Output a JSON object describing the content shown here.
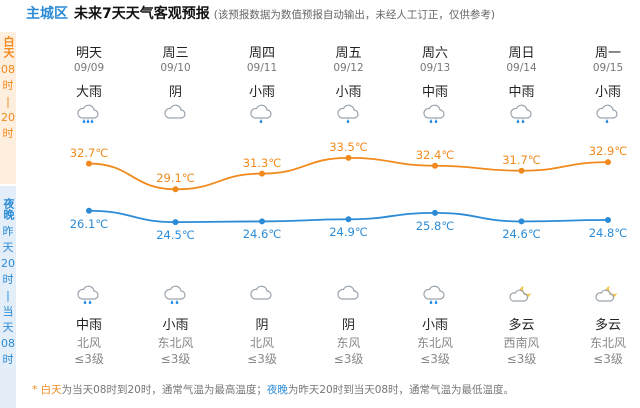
{
  "header": {
    "district": "主城区",
    "title": "未来7天天气客观预报",
    "note": "(该预报数据为数值预报自动输出，未经人工订正，仅供参考)"
  },
  "side": {
    "day_title": "白天",
    "day_range": [
      "08",
      "时",
      "|",
      "20",
      "时"
    ],
    "night_title": "夜晚",
    "night_range": [
      "昨",
      "天",
      "20",
      "时",
      "|",
      "当",
      "天",
      "08",
      "时"
    ]
  },
  "days": [
    {
      "name": "明天",
      "date": "09/09",
      "day_weather": "大雨",
      "day_icon": "heavy-rain-icon",
      "night_icon": "rain-icon",
      "night_weather": "中雨",
      "wind_dir": "北风",
      "wind_level": "≤3级"
    },
    {
      "name": "周三",
      "date": "09/10",
      "day_weather": "阴",
      "day_icon": "overcast-icon",
      "night_icon": "rain-icon",
      "night_weather": "小雨",
      "wind_dir": "东北风",
      "wind_level": "≤3级"
    },
    {
      "name": "周四",
      "date": "09/11",
      "day_weather": "小雨",
      "day_icon": "light-rain-icon",
      "night_icon": "overcast-icon",
      "night_weather": "阴",
      "wind_dir": "北风",
      "wind_level": "≤3级"
    },
    {
      "name": "周五",
      "date": "09/12",
      "day_weather": "小雨",
      "day_icon": "light-rain-icon",
      "night_icon": "overcast-icon",
      "night_weather": "阴",
      "wind_dir": "东风",
      "wind_level": "≤3级"
    },
    {
      "name": "周六",
      "date": "09/13",
      "day_weather": "中雨",
      "day_icon": "rain-icon",
      "night_icon": "rain-icon",
      "night_weather": "小雨",
      "wind_dir": "东北风",
      "wind_level": "≤3级"
    },
    {
      "name": "周日",
      "date": "09/14",
      "day_weather": "中雨",
      "day_icon": "rain-icon",
      "night_icon": "cloudy-night-icon",
      "night_weather": "多云",
      "wind_dir": "西南风",
      "wind_level": "≤3级"
    },
    {
      "name": "周一",
      "date": "09/15",
      "day_weather": "小雨",
      "day_icon": "light-rain-icon",
      "night_icon": "cloudy-night-icon",
      "night_weather": "多云",
      "wind_dir": "东北风",
      "wind_level": "≤3级"
    }
  ],
  "chart_data": {
    "type": "line",
    "categories": [
      "09/09",
      "09/10",
      "09/11",
      "09/12",
      "09/13",
      "09/14",
      "09/15"
    ],
    "series": [
      {
        "values": [
          32.7,
          29.1,
          31.3,
          33.5,
          32.4,
          31.7,
          32.9
        ],
        "color": "#f08a1c"
      },
      {
        "values": [
          26.1,
          24.5,
          24.6,
          24.9,
          25.8,
          24.6,
          24.8
        ],
        "color": "#2b8bd6"
      }
    ],
    "unit": "℃",
    "ylim": [
      22,
      36
    ]
  },
  "footer": {
    "star": "*",
    "day_term": "白天",
    "day_text": "为当天08时到20时，通常气温为最高温度；",
    "night_term": "夜晚",
    "night_text": "为昨天20时到当天08时，通常气温为最低温度。"
  },
  "colors": {
    "day_accent": "#f08a1c",
    "night_accent": "#2b8bd6",
    "day_band": "#fdeede",
    "night_band": "#e4eef9"
  }
}
